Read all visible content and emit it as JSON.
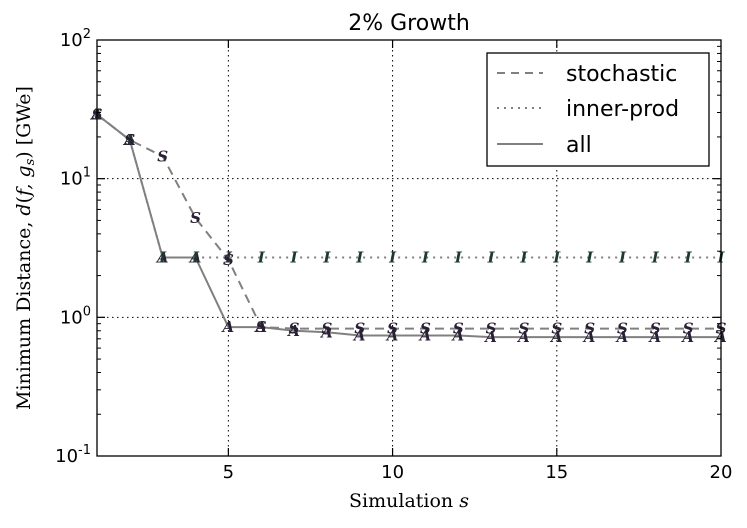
{
  "chart_data": {
    "type": "line",
    "title": "2% Growth",
    "xlabel": "Simulation s",
    "ylabel": "Minimum Distance, d(f, g_s) [GWe]",
    "yscale": "log",
    "xlim": [
      1,
      20
    ],
    "ylim": [
      0.1,
      100
    ],
    "x_ticks": [
      5,
      10,
      15,
      20
    ],
    "x_tick_labels": [
      "5",
      "10",
      "15",
      "20"
    ],
    "y_ticks": [
      0.1,
      1,
      10,
      100
    ],
    "y_tick_labels": [
      {
        "base": "10",
        "exp": "-1"
      },
      {
        "base": "10",
        "exp": "0"
      },
      {
        "base": "10",
        "exp": "1"
      },
      {
        "base": "10",
        "exp": "2"
      }
    ],
    "grid": true,
    "legend_position": "top-right",
    "x": [
      1,
      2,
      3,
      4,
      5,
      6,
      7,
      8,
      9,
      10,
      11,
      12,
      13,
      14,
      15,
      16,
      17,
      18,
      19,
      20
    ],
    "series": [
      {
        "name": "stochastic",
        "style": "dashed",
        "marker": "S",
        "values": [
          29,
          19,
          14.5,
          5.2,
          2.6,
          0.85,
          0.83,
          0.83,
          0.83,
          0.83,
          0.83,
          0.83,
          0.83,
          0.83,
          0.83,
          0.83,
          0.83,
          0.83,
          0.83,
          0.83
        ]
      },
      {
        "name": "inner-prod",
        "style": "dotted",
        "marker": "I",
        "values": [
          29,
          19,
          2.7,
          2.7,
          2.7,
          2.7,
          2.7,
          2.7,
          2.7,
          2.7,
          2.7,
          2.7,
          2.7,
          2.7,
          2.7,
          2.7,
          2.7,
          2.7,
          2.7,
          2.7
        ]
      },
      {
        "name": "all",
        "style": "solid",
        "marker": "A",
        "values": [
          29,
          19,
          2.7,
          2.7,
          0.85,
          0.85,
          0.8,
          0.78,
          0.74,
          0.74,
          0.74,
          0.74,
          0.72,
          0.72,
          0.72,
          0.72,
          0.72,
          0.72,
          0.72,
          0.72
        ]
      }
    ],
    "legend_entries": [
      "stochastic",
      "inner-prod",
      "all"
    ],
    "colors": {
      "line": "#808080",
      "grid": "#000000",
      "marker_s": "#2a2035",
      "marker_i": "#1e3a30",
      "marker_a": "#2a2035"
    }
  }
}
